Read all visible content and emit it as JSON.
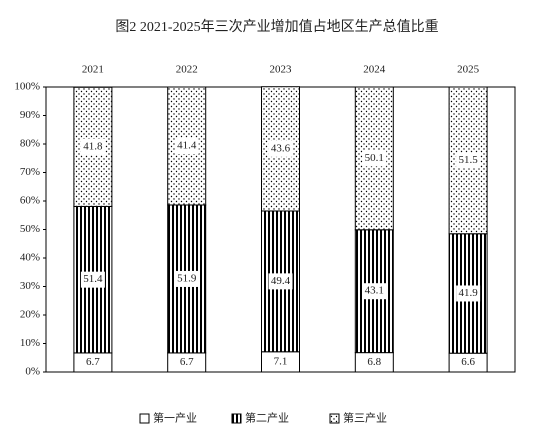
{
  "chart_data": {
    "type": "stacked-bar-100",
    "title": "图2 2021-2025年三次产业增加值占地区生产总值比重",
    "categories": [
      "2021",
      "2022",
      "2023",
      "2024",
      "2025"
    ],
    "series": [
      {
        "name": "第一产业",
        "values": [
          6.7,
          6.7,
          7.1,
          6.8,
          6.6
        ]
      },
      {
        "name": "第二产业",
        "values": [
          51.4,
          51.9,
          49.4,
          43.1,
          41.9
        ]
      },
      {
        "name": "第三产业",
        "values": [
          41.8,
          41.4,
          43.6,
          50.1,
          51.5
        ]
      }
    ],
    "ylim": [
      0,
      100
    ],
    "yticks": [
      {
        "value": 0,
        "label": "0%"
      },
      {
        "value": 10,
        "label": "10%"
      },
      {
        "value": 20,
        "label": "20%"
      },
      {
        "value": 30,
        "label": "30%"
      },
      {
        "value": 40,
        "label": "40%"
      },
      {
        "value": 50,
        "label": "50%"
      },
      {
        "value": 60,
        "label": "60%"
      },
      {
        "value": 70,
        "label": "70%"
      },
      {
        "value": 80,
        "label": "80%"
      },
      {
        "value": 90,
        "label": "90%"
      },
      {
        "value": 100,
        "label": "100%"
      }
    ]
  }
}
